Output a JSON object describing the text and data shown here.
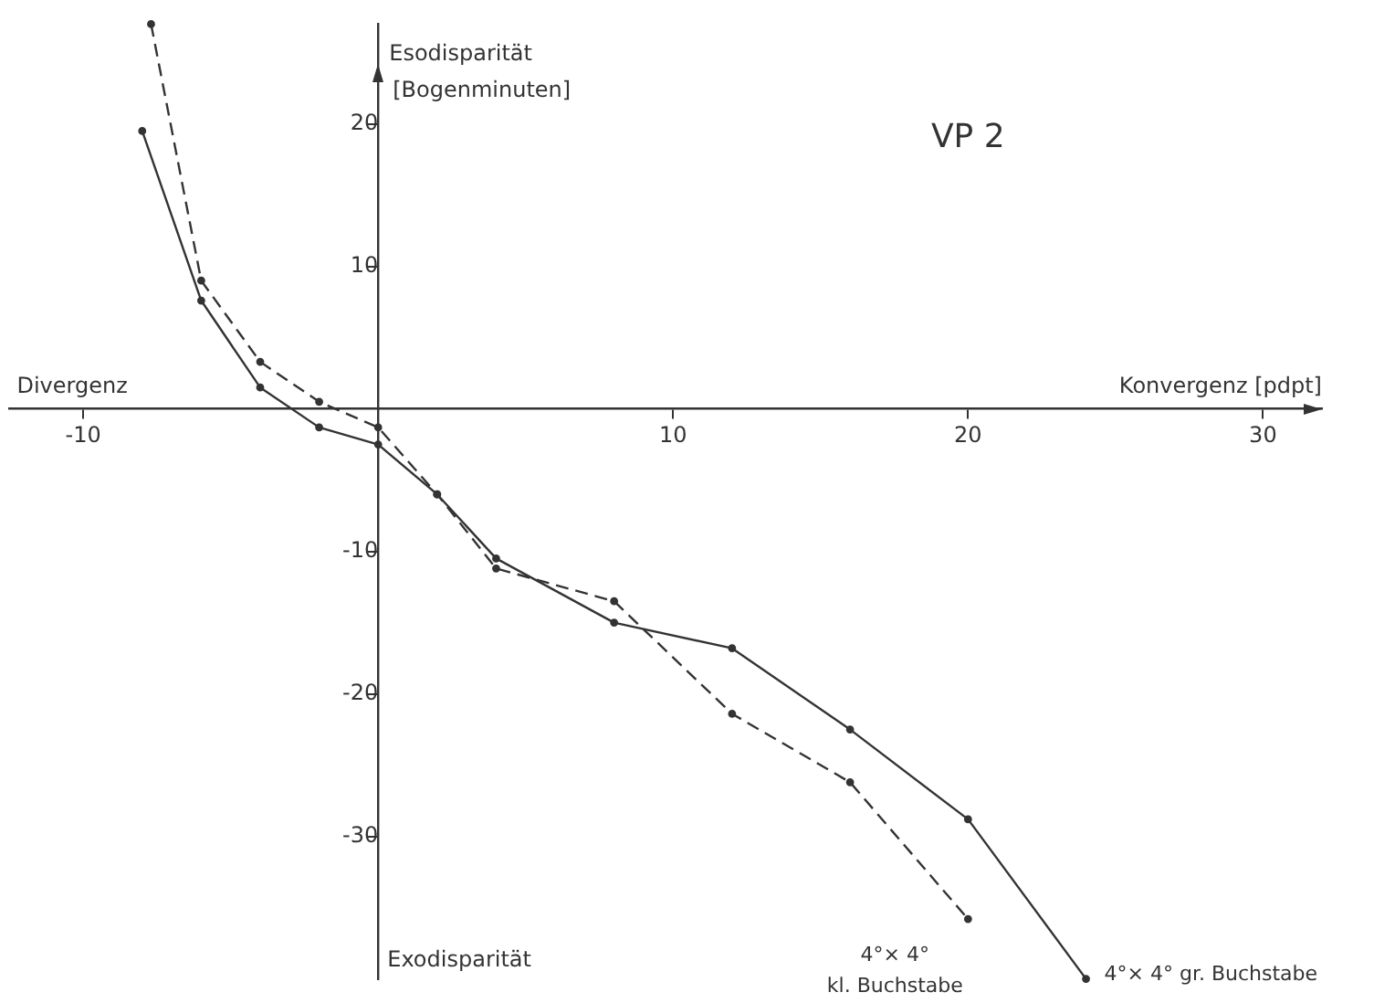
{
  "chart_data": {
    "type": "line",
    "title": "VP 2",
    "xlabel": "Konvergenz [pdpt]",
    "ylabel": "Esodisparität [Bogenminuten]",
    "annotations": [
      "Divergenz",
      "Exodisparität"
    ],
    "xlim": [
      -12.5,
      32
    ],
    "ylim": [
      -40,
      27
    ],
    "xticks": [
      -10,
      10,
      20,
      30
    ],
    "yticks": [
      -30,
      -20,
      -10,
      10,
      20
    ],
    "grid": false,
    "legend": false,
    "marker": "circle",
    "series": [
      {
        "name": "4°× 4° kl. Buchstabe",
        "color": "#333333",
        "line_style": "dashed",
        "x": [
          -7.7,
          -6,
          -4,
          -2,
          0,
          2,
          4,
          8,
          12,
          16,
          20
        ],
        "values": [
          27,
          9,
          3.3,
          0.5,
          -1.3,
          -6,
          -11.2,
          -13.5,
          -21.4,
          -26.2,
          -35.8
        ]
      },
      {
        "name": "4°× 4° gr. Buchstabe",
        "color": "#333333",
        "line_style": "solid",
        "x": [
          -8,
          -6,
          -4,
          -2,
          0,
          2,
          4,
          8,
          12,
          16,
          20,
          24
        ],
        "values": [
          19.5,
          7.6,
          1.5,
          -1.3,
          -2.5,
          -6,
          -10.5,
          -15,
          -16.8,
          -22.5,
          -28.8,
          -40
        ]
      }
    ]
  }
}
